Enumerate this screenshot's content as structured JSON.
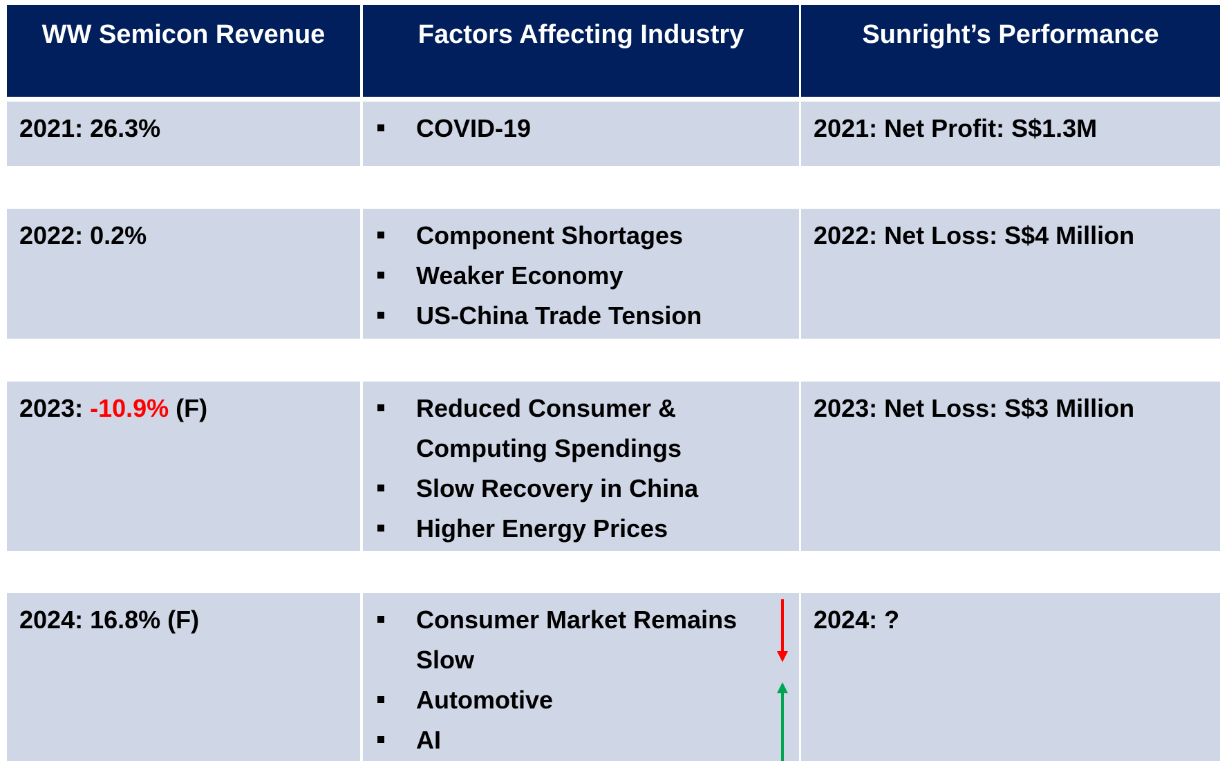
{
  "header": [
    "WW Semicon Revenue",
    "Factors Affecting Industry",
    "Sunright’s Performance"
  ],
  "rows": [
    {
      "revenue": [
        {
          "text": "2021: 26.3%",
          "color": "#000000"
        }
      ],
      "factors": [
        "COVID-19"
      ],
      "performance": "2021: Net Profit: S$1.3M"
    },
    {
      "revenue": [
        {
          "text": "2022: 0.2%",
          "color": "#000000"
        }
      ],
      "factors": [
        "Component Shortages",
        "Weaker Economy",
        "US-China Trade Tension"
      ],
      "performance": "2022: Net Loss: S$4 Million"
    },
    {
      "revenue": [
        {
          "text": "2023: ",
          "color": "#000000"
        },
        {
          "text": "-10.9%",
          "color": "#ff0000"
        },
        {
          "text": " (F)",
          "color": "#000000"
        }
      ],
      "factors": [
        "Reduced Consumer & Computing Spendings",
        "Slow Recovery in China",
        "Higher Energy Prices"
      ],
      "performance": "2023: Net Loss: S$3 Million"
    },
    {
      "revenue": [
        {
          "text": "2024: 16.8% (F)",
          "color": "#000000"
        }
      ],
      "factors": [
        "Consumer Market Remains Slow",
        "Automotive",
        "AI"
      ],
      "performance": "2024: ?"
    }
  ]
}
